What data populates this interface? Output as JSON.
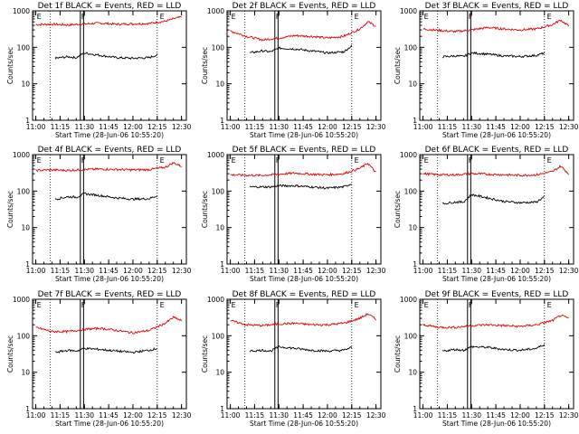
{
  "figure": {
    "background": "#ffffff",
    "events_color": "#000000",
    "lld_color": "#e00000"
  },
  "chart_data": [
    {
      "type": "line",
      "title": "Det 1f BLACK = Events, RED = LLD",
      "xlabel": "Start Time (28-Jun-06 10:55:20)",
      "ylabel": "Counts/sec",
      "xticks": [
        "11:00",
        "11:15",
        "11:30",
        "11:45",
        "12:00",
        "12:15",
        "12:30"
      ],
      "yticks": [
        "1",
        "10",
        "100",
        "1000"
      ],
      "ylog": true,
      "ylim": [
        1,
        1000
      ],
      "flags": [
        "E",
        "F",
        "E"
      ],
      "series": [
        {
          "name": "LLD",
          "x": [
            "11:00",
            "11:10",
            "11:20",
            "11:30",
            "11:40",
            "11:50",
            "12:00",
            "12:10",
            "12:20",
            "12:25",
            "12:30"
          ],
          "y": [
            420,
            430,
            410,
            440,
            460,
            430,
            440,
            450,
            520,
            600,
            680
          ]
        },
        {
          "name": "Events",
          "x": [
            "11:12",
            "11:20",
            "11:25",
            "11:30",
            "11:40",
            "11:50",
            "12:00",
            "12:10",
            "12:15"
          ],
          "y": [
            50,
            55,
            52,
            70,
            60,
            52,
            50,
            52,
            62
          ]
        }
      ]
    },
    {
      "type": "line",
      "title": "Det 2f BLACK = Events, RED = LLD",
      "xlabel": "Start Time (28-Jun-06 10:55:20)",
      "ylabel": "Counts/sec",
      "xticks": [
        "11:00",
        "11:15",
        "11:30",
        "11:45",
        "12:00",
        "12:15",
        "12:30"
      ],
      "yticks": [
        "1",
        "10",
        "100",
        "1000"
      ],
      "ylog": true,
      "ylim": [
        1,
        1000
      ],
      "flags": [
        "E",
        "F",
        "E"
      ],
      "series": [
        {
          "name": "LLD",
          "x": [
            "11:00",
            "11:10",
            "11:20",
            "11:30",
            "11:40",
            "11:50",
            "12:00",
            "12:10",
            "12:20",
            "12:25",
            "12:30"
          ],
          "y": [
            280,
            200,
            160,
            180,
            210,
            200,
            180,
            200,
            320,
            500,
            380
          ]
        },
        {
          "name": "Events",
          "x": [
            "11:12",
            "11:20",
            "11:25",
            "11:30",
            "11:40",
            "11:50",
            "12:00",
            "12:10",
            "12:15"
          ],
          "y": [
            70,
            80,
            75,
            95,
            90,
            80,
            70,
            75,
            110
          ]
        }
      ]
    },
    {
      "type": "line",
      "title": "Det 3f BLACK = Events, RED = LLD",
      "xlabel": "Start Time (28-Jun-06 10:55:20)",
      "ylabel": "Counts/sec",
      "xticks": [
        "11:00",
        "11:15",
        "11:30",
        "11:45",
        "12:00",
        "12:15",
        "12:30"
      ],
      "yticks": [
        "1",
        "10",
        "100",
        "1000"
      ],
      "ylog": true,
      "ylim": [
        1,
        1000
      ],
      "flags": [
        "E",
        "F",
        "E"
      ],
      "series": [
        {
          "name": "LLD",
          "x": [
            "11:00",
            "11:10",
            "11:20",
            "11:30",
            "11:40",
            "11:50",
            "12:00",
            "12:10",
            "12:20",
            "12:25",
            "12:30"
          ],
          "y": [
            320,
            290,
            270,
            300,
            350,
            320,
            300,
            320,
            420,
            560,
            380
          ]
        },
        {
          "name": "Events",
          "x": [
            "11:12",
            "11:20",
            "11:25",
            "11:30",
            "11:40",
            "11:50",
            "12:00",
            "12:10",
            "12:15"
          ],
          "y": [
            55,
            58,
            56,
            70,
            65,
            58,
            56,
            60,
            70
          ]
        }
      ]
    },
    {
      "type": "line",
      "title": "Det 4f BLACK = Events, RED = LLD",
      "xlabel": "Start Time (28-Jun-06 10:55:20)",
      "ylabel": "Counts/sec",
      "xticks": [
        "11:00",
        "11:15",
        "11:30",
        "11:45",
        "12:00",
        "12:15",
        "12:30"
      ],
      "yticks": [
        "1",
        "10",
        "100",
        "1000"
      ],
      "ylog": true,
      "ylim": [
        1,
        1000
      ],
      "flags": [
        "E",
        "F",
        "E"
      ],
      "series": [
        {
          "name": "LLD",
          "x": [
            "11:00",
            "11:10",
            "11:20",
            "11:30",
            "11:40",
            "11:50",
            "12:00",
            "12:10",
            "12:20",
            "12:25",
            "12:30"
          ],
          "y": [
            370,
            380,
            370,
            390,
            400,
            390,
            380,
            390,
            450,
            600,
            480
          ]
        },
        {
          "name": "Events",
          "x": [
            "11:12",
            "11:20",
            "11:25",
            "11:30",
            "11:40",
            "11:50",
            "12:00",
            "12:10",
            "12:15"
          ],
          "y": [
            60,
            70,
            68,
            85,
            75,
            65,
            60,
            62,
            75
          ]
        }
      ]
    },
    {
      "type": "line",
      "title": "Det 5f BLACK = Events, RED = LLD",
      "xlabel": "Start Time (28-Jun-06 10:55:20)",
      "ylabel": "Counts/sec",
      "xticks": [
        "11:00",
        "11:15",
        "11:30",
        "11:45",
        "12:00",
        "12:15",
        "12:30"
      ],
      "yticks": [
        "1",
        "10",
        "100",
        "1000"
      ],
      "ylog": true,
      "ylim": [
        1,
        1000
      ],
      "flags": [
        "E",
        "F",
        "E"
      ],
      "series": [
        {
          "name": "LLD",
          "x": [
            "11:00",
            "11:10",
            "11:20",
            "11:30",
            "11:40",
            "11:50",
            "12:00",
            "12:10",
            "12:20",
            "12:25",
            "12:30"
          ],
          "y": [
            280,
            270,
            270,
            290,
            310,
            290,
            280,
            300,
            420,
            580,
            320
          ]
        },
        {
          "name": "Events",
          "x": [
            "11:12",
            "11:20",
            "11:25",
            "11:30",
            "11:40",
            "11:50",
            "12:00",
            "12:10",
            "12:15"
          ],
          "y": [
            130,
            130,
            130,
            140,
            140,
            130,
            120,
            130,
            160
          ]
        }
      ]
    },
    {
      "type": "line",
      "title": "Det 6f BLACK = Events, RED = LLD",
      "xlabel": "Start Time (28-Jun-06 10:55:20)",
      "ylabel": "Counts/sec",
      "xticks": [
        "11:00",
        "11:15",
        "11:30",
        "11:45",
        "12:00",
        "12:15",
        "12:30"
      ],
      "yticks": [
        "1",
        "10",
        "100",
        "1000"
      ],
      "ylog": true,
      "ylim": [
        1,
        1000
      ],
      "flags": [
        "E",
        "F",
        "E"
      ],
      "series": [
        {
          "name": "LLD",
          "x": [
            "11:00",
            "11:10",
            "11:20",
            "11:30",
            "11:40",
            "11:50",
            "12:00",
            "12:10",
            "12:20",
            "12:25",
            "12:30"
          ],
          "y": [
            300,
            280,
            280,
            300,
            290,
            280,
            270,
            280,
            340,
            480,
            300
          ]
        },
        {
          "name": "Events",
          "x": [
            "11:12",
            "11:20",
            "11:25",
            "11:30",
            "11:40",
            "11:50",
            "12:00",
            "12:10",
            "12:15"
          ],
          "y": [
            45,
            50,
            50,
            80,
            65,
            52,
            48,
            50,
            70
          ]
        }
      ]
    },
    {
      "type": "line",
      "title": "Det 7f BLACK = Events, RED = LLD",
      "xlabel": "Start Time (28-Jun-06 10:55:20)",
      "ylabel": "Counts/sec",
      "xticks": [
        "11:00",
        "11:15",
        "11:30",
        "11:45",
        "12:00",
        "12:15",
        "12:30"
      ],
      "yticks": [
        "1",
        "10",
        "100",
        "1000"
      ],
      "ylog": true,
      "ylim": [
        1,
        1000
      ],
      "flags": [
        "E",
        "F",
        "E"
      ],
      "series": [
        {
          "name": "LLD",
          "x": [
            "11:00",
            "11:10",
            "11:20",
            "11:30",
            "11:40",
            "11:50",
            "12:00",
            "12:10",
            "12:20",
            "12:25",
            "12:30"
          ],
          "y": [
            170,
            130,
            130,
            150,
            160,
            140,
            120,
            140,
            220,
            320,
            260
          ]
        },
        {
          "name": "Events",
          "x": [
            "11:12",
            "11:20",
            "11:25",
            "11:30",
            "11:40",
            "11:50",
            "12:00",
            "12:10",
            "12:15"
          ],
          "y": [
            35,
            40,
            38,
            45,
            42,
            38,
            35,
            40,
            45
          ]
        }
      ]
    },
    {
      "type": "line",
      "title": "Det 8f BLACK = Events, RED = LLD",
      "xlabel": "Start Time (28-Jun-06 10:55:20)",
      "ylabel": "Counts/sec",
      "xticks": [
        "11:00",
        "11:15",
        "11:30",
        "11:45",
        "12:00",
        "12:15",
        "12:30"
      ],
      "yticks": [
        "1",
        "10",
        "100",
        "1000"
      ],
      "ylog": true,
      "ylim": [
        1,
        1000
      ],
      "flags": [
        "E",
        "F",
        "E"
      ],
      "series": [
        {
          "name": "LLD",
          "x": [
            "11:00",
            "11:10",
            "11:20",
            "11:30",
            "11:40",
            "11:50",
            "12:00",
            "12:10",
            "12:20",
            "12:25",
            "12:30"
          ],
          "y": [
            260,
            200,
            190,
            210,
            220,
            200,
            200,
            220,
            300,
            400,
            280
          ]
        },
        {
          "name": "Events",
          "x": [
            "11:12",
            "11:20",
            "11:25",
            "11:30",
            "11:40",
            "11:50",
            "12:00",
            "12:10",
            "12:15"
          ],
          "y": [
            38,
            40,
            38,
            50,
            45,
            40,
            38,
            40,
            48
          ]
        }
      ]
    },
    {
      "type": "line",
      "title": "Det 9f BLACK = Events, RED = LLD",
      "xlabel": "Start Time (28-Jun-06 10:55:20)",
      "ylabel": "Counts/sec",
      "xticks": [
        "11:00",
        "11:15",
        "11:30",
        "11:45",
        "12:00",
        "12:15",
        "12:30"
      ],
      "yticks": [
        "1",
        "10",
        "100",
        "1000"
      ],
      "ylog": true,
      "ylim": [
        1,
        1000
      ],
      "flags": [
        "E",
        "F",
        "E"
      ],
      "series": [
        {
          "name": "LLD",
          "x": [
            "11:00",
            "11:10",
            "11:20",
            "11:30",
            "11:40",
            "11:50",
            "12:00",
            "12:10",
            "12:20",
            "12:25",
            "12:30"
          ],
          "y": [
            200,
            170,
            170,
            190,
            200,
            190,
            180,
            200,
            260,
            360,
            300
          ]
        },
        {
          "name": "Events",
          "x": [
            "11:12",
            "11:20",
            "11:25",
            "11:30",
            "11:40",
            "11:50",
            "12:00",
            "12:10",
            "12:15"
          ],
          "y": [
            38,
            42,
            40,
            50,
            48,
            42,
            40,
            45,
            58
          ]
        }
      ]
    }
  ]
}
